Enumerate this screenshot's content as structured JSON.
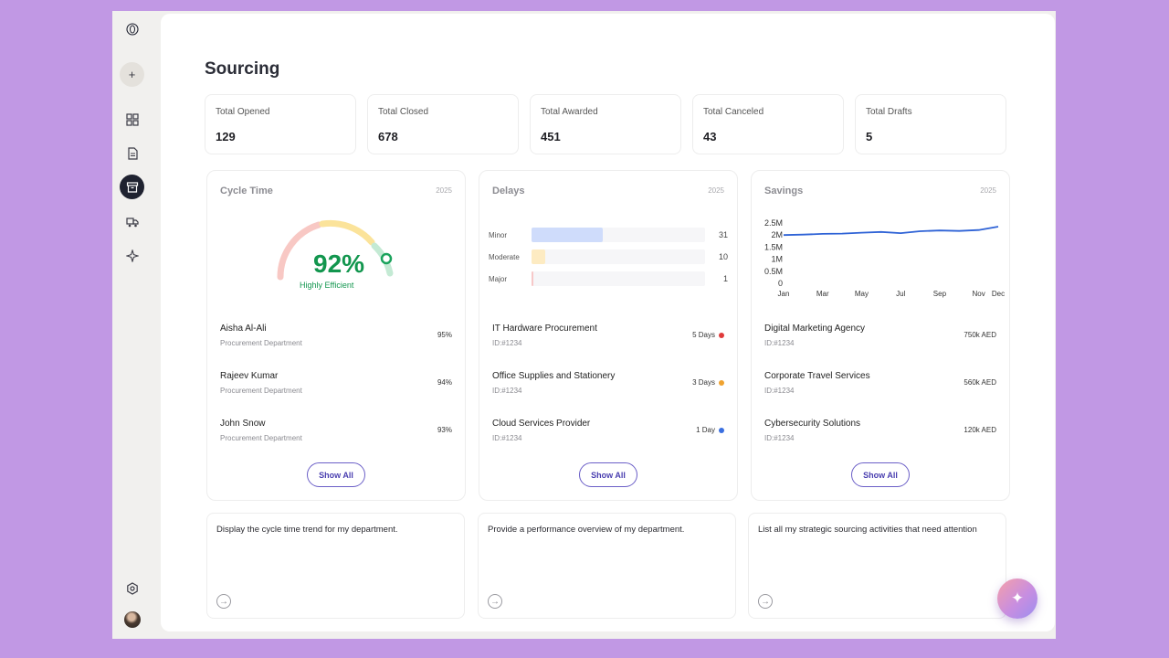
{
  "page": {
    "title": "Sourcing"
  },
  "stats": [
    {
      "label": "Total Opened",
      "value": "129"
    },
    {
      "label": "Total Closed",
      "value": "678"
    },
    {
      "label": "Total Awarded",
      "value": "451"
    },
    {
      "label": "Total Canceled",
      "value": "43"
    },
    {
      "label": "Total Drafts",
      "value": "5"
    }
  ],
  "cycle_time": {
    "title": "Cycle Time",
    "year": "2025",
    "percent": "92%",
    "percent_value": 92,
    "status": "Highly Efficient",
    "rows": [
      {
        "name": "Aisha Al-Ali",
        "dept": "Procurement Department",
        "value": "95%"
      },
      {
        "name": "Rajeev Kumar",
        "dept": "Procurement Department",
        "value": "94%"
      },
      {
        "name": "John Snow",
        "dept": "Procurement Department",
        "value": "93%"
      }
    ],
    "show_all": "Show All"
  },
  "delays": {
    "title": "Delays",
    "year": "2025",
    "bars": [
      {
        "label": "Minor",
        "value": "31",
        "fraction": 0.41,
        "color": "#cfdcfb"
      },
      {
        "label": "Moderate",
        "value": "10",
        "fraction": 0.08,
        "color": "#fdebc2"
      },
      {
        "label": "Major",
        "value": "1",
        "fraction": 0.01,
        "color": "#f7c8c8"
      }
    ],
    "rows": [
      {
        "name": "IT Hardware Procurement",
        "id": "ID:#1234",
        "value": "5 Days",
        "color": "#e03a3a"
      },
      {
        "name": "Office Supplies and Stationery",
        "id": "ID:#1234",
        "value": "3 Days",
        "color": "#f0a330"
      },
      {
        "name": "Cloud Services Provider",
        "id": "ID:#1234",
        "value": "1 Day",
        "color": "#3a6fe0"
      }
    ],
    "show_all": "Show All"
  },
  "savings": {
    "title": "Savings",
    "year": "2025",
    "rows": [
      {
        "name": "Digital Marketing Agency",
        "id": "ID:#1234",
        "value": "750k AED"
      },
      {
        "name": "Corporate Travel Services",
        "id": "ID:#1234",
        "value": "560k AED"
      },
      {
        "name": "Cybersecurity Solutions",
        "id": "ID:#1234",
        "value": "120k AED"
      }
    ],
    "show_all": "Show All"
  },
  "chart_data": {
    "type": "line",
    "title": "Savings",
    "x": [
      "Jan",
      "Feb",
      "Mar",
      "Apr",
      "May",
      "Jun",
      "Jul",
      "Aug",
      "Sep",
      "Oct",
      "Nov",
      "Dec"
    ],
    "x_ticks": [
      "Jan",
      "Mar",
      "May",
      "Jul",
      "Sep",
      "Nov",
      "Dec"
    ],
    "y_ticks": [
      "2.5M",
      "2M",
      "1.5M",
      "1M",
      "0.5M",
      "0"
    ],
    "ylim": [
      0,
      2500000
    ],
    "series": [
      {
        "values": [
          2000000,
          2020000,
          2050000,
          2060000,
          2100000,
          2130000,
          2080000,
          2160000,
          2190000,
          2170000,
          2210000,
          2350000
        ],
        "color": "#2f63d6"
      }
    ]
  },
  "prompts": [
    {
      "text": "Display the cycle time trend for my department."
    },
    {
      "text": "Provide a performance overview of my department."
    },
    {
      "text": "List all my strategic sourcing activities that need attention"
    }
  ],
  "icons": {
    "logo": "logo-icon",
    "add": "plus-icon",
    "dashboard": "grid-icon",
    "documents": "document-icon",
    "sourcing": "archive-icon",
    "delivery": "truck-icon",
    "ai": "sparkle-icon",
    "settings": "settings-icon",
    "fab": "sparkle-icon"
  }
}
